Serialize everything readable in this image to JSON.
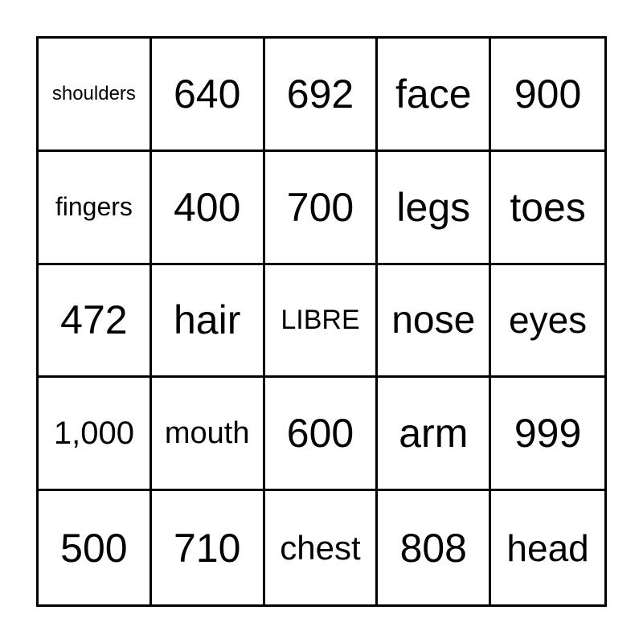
{
  "card": {
    "cells": [
      [
        "shoulders",
        "640",
        "692",
        "face",
        "900"
      ],
      [
        "fingers",
        "400",
        "700",
        "legs",
        "toes"
      ],
      [
        "472",
        "hair",
        "LIBRE",
        "nose",
        "eyes"
      ],
      [
        "1,000",
        "mouth",
        "600",
        "arm",
        "999"
      ],
      [
        "500",
        "710",
        "chest",
        "808",
        "head"
      ]
    ]
  }
}
